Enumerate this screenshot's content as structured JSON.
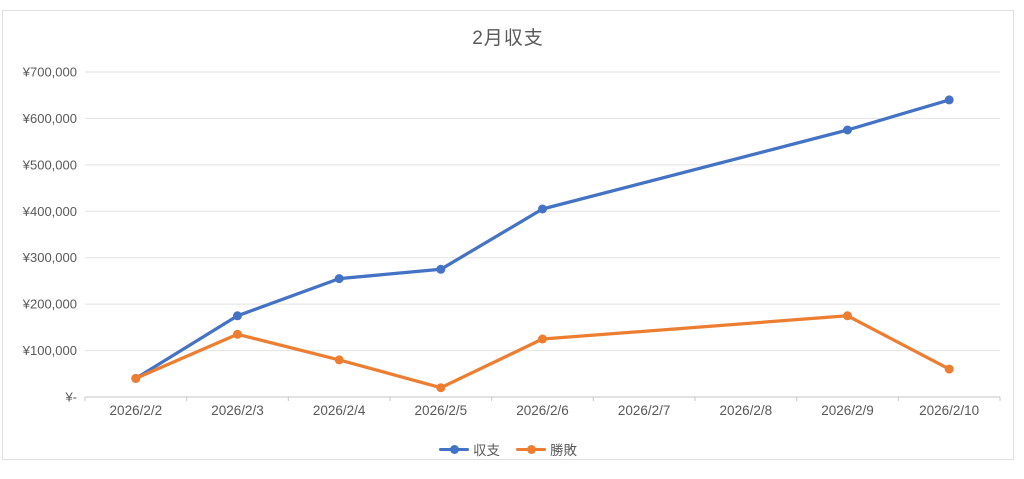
{
  "chart": {
    "frame_border_color": "#e0e0e0",
    "background": "#ffffff",
    "title_color": "#595959",
    "axis_text_color": "#595959",
    "gridline_color": "#e2e2e2",
    "axis_line_color": "#c6c6c6"
  },
  "chart_data": {
    "type": "line",
    "title": "2月収支",
    "categories": [
      "2026/2/2",
      "2026/2/3",
      "2026/2/4",
      "2026/2/5",
      "2026/2/6",
      "2026/2/7",
      "2026/2/8",
      "2026/2/9",
      "2026/2/10"
    ],
    "series": [
      {
        "name": "収支",
        "color": "#4472C4",
        "values": [
          40000,
          175000,
          255000,
          275000,
          405000,
          null,
          null,
          575000,
          640000
        ]
      },
      {
        "name": "勝敗",
        "color": "#ED7D31",
        "values": [
          40000,
          135000,
          80000,
          20000,
          125000,
          null,
          null,
          175000,
          60000
        ]
      }
    ],
    "ylim": [
      0,
      700000
    ],
    "y_tick_interval": 100000,
    "y_tick_labels": [
      "¥-",
      "¥100,000",
      "¥200,000",
      "¥300,000",
      "¥400,000",
      "¥500,000",
      "¥600,000",
      "¥700,000"
    ],
    "grid": true,
    "legend_position": "bottom",
    "marker": "circle",
    "missing_data_note": "2026/2/7 and 2026/2/8 have no data points; lines connect across the gap"
  }
}
